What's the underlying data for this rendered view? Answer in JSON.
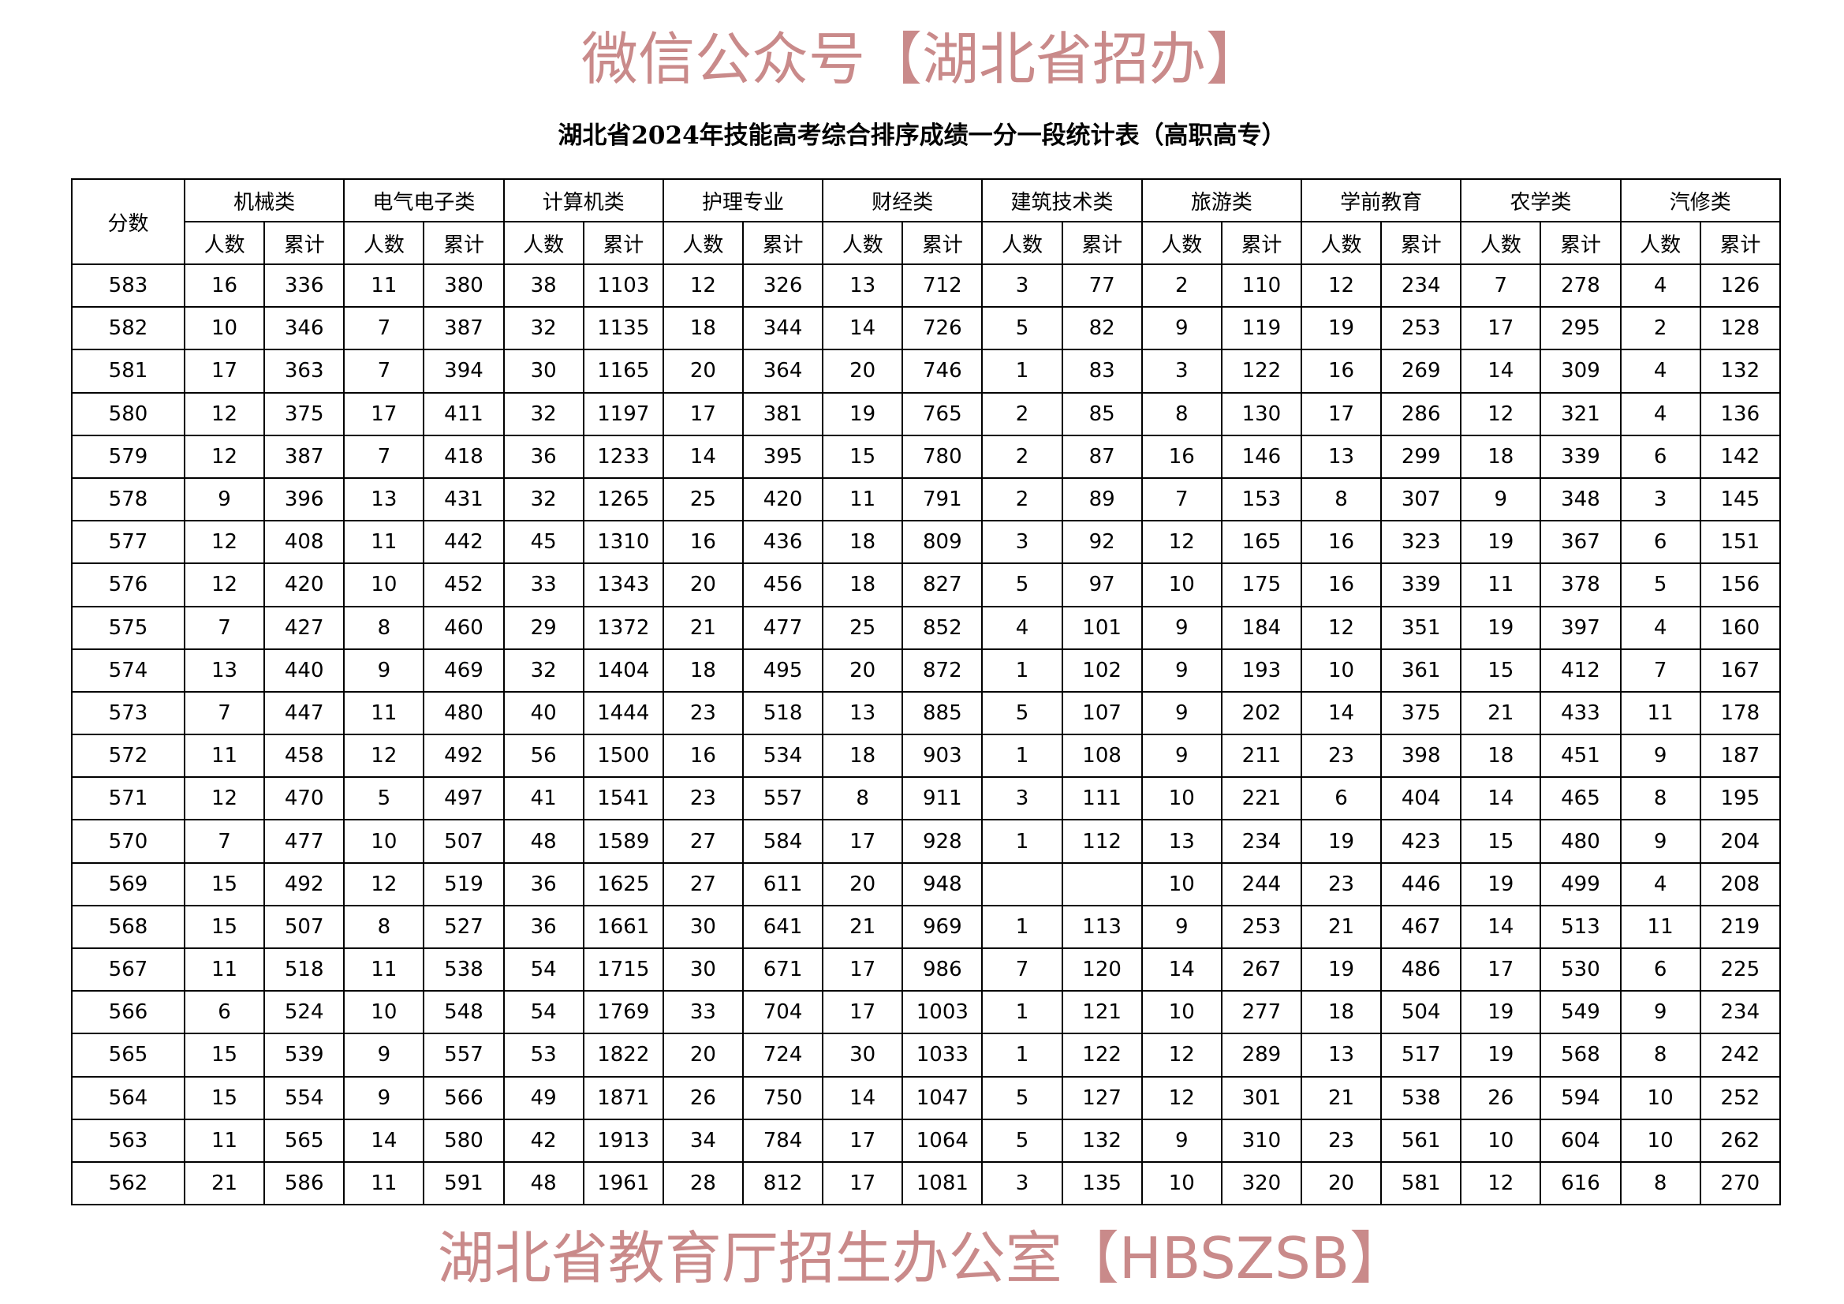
{
  "title": "湖北省2024年技能高考综合排序成绩一分一段统计表（高职高专）",
  "header": {
    "score_label": "分数",
    "categories": [
      "机械类",
      "电气电子类",
      "计算机类",
      "护理专业",
      "财经类",
      "建筑技术类",
      "旅游类",
      "学前教育",
      "农学类",
      "汽修类"
    ],
    "sub_count": "人数",
    "sub_cum": "累计"
  },
  "rows": [
    [
      "583",
      "16",
      "336",
      "11",
      "380",
      "38",
      "1103",
      "12",
      "326",
      "13",
      "712",
      "3",
      "77",
      "2",
      "110",
      "12",
      "234",
      "7",
      "278",
      "4",
      "126"
    ],
    [
      "582",
      "10",
      "346",
      "7",
      "387",
      "32",
      "1135",
      "18",
      "344",
      "14",
      "726",
      "5",
      "82",
      "9",
      "119",
      "19",
      "253",
      "17",
      "295",
      "2",
      "128"
    ],
    [
      "581",
      "17",
      "363",
      "7",
      "394",
      "30",
      "1165",
      "20",
      "364",
      "20",
      "746",
      "1",
      "83",
      "3",
      "122",
      "16",
      "269",
      "14",
      "309",
      "4",
      "132"
    ],
    [
      "580",
      "12",
      "375",
      "17",
      "411",
      "32",
      "1197",
      "17",
      "381",
      "19",
      "765",
      "2",
      "85",
      "8",
      "130",
      "17",
      "286",
      "12",
      "321",
      "4",
      "136"
    ],
    [
      "579",
      "12",
      "387",
      "7",
      "418",
      "36",
      "1233",
      "14",
      "395",
      "15",
      "780",
      "2",
      "87",
      "16",
      "146",
      "13",
      "299",
      "18",
      "339",
      "6",
      "142"
    ],
    [
      "578",
      "9",
      "396",
      "13",
      "431",
      "32",
      "1265",
      "25",
      "420",
      "11",
      "791",
      "2",
      "89",
      "7",
      "153",
      "8",
      "307",
      "9",
      "348",
      "3",
      "145"
    ],
    [
      "577",
      "12",
      "408",
      "11",
      "442",
      "45",
      "1310",
      "16",
      "436",
      "18",
      "809",
      "3",
      "92",
      "12",
      "165",
      "16",
      "323",
      "19",
      "367",
      "6",
      "151"
    ],
    [
      "576",
      "12",
      "420",
      "10",
      "452",
      "33",
      "1343",
      "20",
      "456",
      "18",
      "827",
      "5",
      "97",
      "10",
      "175",
      "16",
      "339",
      "11",
      "378",
      "5",
      "156"
    ],
    [
      "575",
      "7",
      "427",
      "8",
      "460",
      "29",
      "1372",
      "21",
      "477",
      "25",
      "852",
      "4",
      "101",
      "9",
      "184",
      "12",
      "351",
      "19",
      "397",
      "4",
      "160"
    ],
    [
      "574",
      "13",
      "440",
      "9",
      "469",
      "32",
      "1404",
      "18",
      "495",
      "20",
      "872",
      "1",
      "102",
      "9",
      "193",
      "10",
      "361",
      "15",
      "412",
      "7",
      "167"
    ],
    [
      "573",
      "7",
      "447",
      "11",
      "480",
      "40",
      "1444",
      "23",
      "518",
      "13",
      "885",
      "5",
      "107",
      "9",
      "202",
      "14",
      "375",
      "21",
      "433",
      "11",
      "178"
    ],
    [
      "572",
      "11",
      "458",
      "12",
      "492",
      "56",
      "1500",
      "16",
      "534",
      "18",
      "903",
      "1",
      "108",
      "9",
      "211",
      "23",
      "398",
      "18",
      "451",
      "9",
      "187"
    ],
    [
      "571",
      "12",
      "470",
      "5",
      "497",
      "41",
      "1541",
      "23",
      "557",
      "8",
      "911",
      "3",
      "111",
      "10",
      "221",
      "6",
      "404",
      "14",
      "465",
      "8",
      "195"
    ],
    [
      "570",
      "7",
      "477",
      "10",
      "507",
      "48",
      "1589",
      "27",
      "584",
      "17",
      "928",
      "1",
      "112",
      "13",
      "234",
      "19",
      "423",
      "15",
      "480",
      "9",
      "204"
    ],
    [
      "569",
      "15",
      "492",
      "12",
      "519",
      "36",
      "1625",
      "27",
      "611",
      "20",
      "948",
      "",
      "",
      "10",
      "244",
      "23",
      "446",
      "19",
      "499",
      "4",
      "208"
    ],
    [
      "568",
      "15",
      "507",
      "8",
      "527",
      "36",
      "1661",
      "30",
      "641",
      "21",
      "969",
      "1",
      "113",
      "9",
      "253",
      "21",
      "467",
      "14",
      "513",
      "11",
      "219"
    ],
    [
      "567",
      "11",
      "518",
      "11",
      "538",
      "54",
      "1715",
      "30",
      "671",
      "17",
      "986",
      "7",
      "120",
      "14",
      "267",
      "19",
      "486",
      "17",
      "530",
      "6",
      "225"
    ],
    [
      "566",
      "6",
      "524",
      "10",
      "548",
      "54",
      "1769",
      "33",
      "704",
      "17",
      "1003",
      "1",
      "121",
      "10",
      "277",
      "18",
      "504",
      "19",
      "549",
      "9",
      "234"
    ],
    [
      "565",
      "15",
      "539",
      "9",
      "557",
      "53",
      "1822",
      "20",
      "724",
      "30",
      "1033",
      "1",
      "122",
      "12",
      "289",
      "13",
      "517",
      "19",
      "568",
      "8",
      "242"
    ],
    [
      "564",
      "15",
      "554",
      "9",
      "566",
      "49",
      "1871",
      "26",
      "750",
      "14",
      "1047",
      "5",
      "127",
      "12",
      "301",
      "21",
      "538",
      "26",
      "594",
      "10",
      "252"
    ],
    [
      "563",
      "11",
      "565",
      "14",
      "580",
      "42",
      "1913",
      "34",
      "784",
      "17",
      "1064",
      "5",
      "132",
      "9",
      "310",
      "23",
      "561",
      "10",
      "604",
      "10",
      "262"
    ],
    [
      "562",
      "21",
      "586",
      "11",
      "591",
      "48",
      "1961",
      "28",
      "812",
      "17",
      "1081",
      "3",
      "135",
      "10",
      "320",
      "20",
      "581",
      "12",
      "616",
      "8",
      "270"
    ]
  ],
  "watermark": {
    "line1": "微信公众号【湖北省招办】",
    "line2": "湖北省教育厅招生办公室【HBSZSB】",
    "color": "#c98a8a"
  }
}
